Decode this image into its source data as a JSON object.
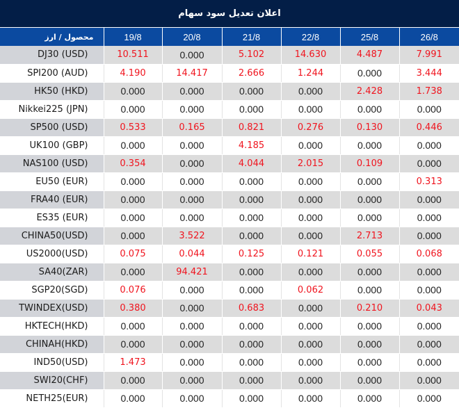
{
  "title": "اعلان تعديل سود سهام",
  "header": {
    "label_column": "محصول / ارز",
    "dates": [
      "19/8",
      "20/8",
      "21/8",
      "22/8",
      "25/8",
      "26/8"
    ]
  },
  "colors": {
    "title_bg": "#031e47",
    "header_bg": "#0b4aa0",
    "highlight_text": "#f0141e",
    "row_alt_bg": "#dcdcdc",
    "label_alt_bg": "#d2d4d9"
  },
  "rows": [
    {
      "product": "DJ30 (USD)",
      "values": [
        "10.511",
        "0.000",
        "5.102",
        "14.630",
        "4.487",
        "7.991"
      ]
    },
    {
      "product": "SPI200 (AUD)",
      "values": [
        "4.190",
        "14.417",
        "2.666",
        "1.244",
        "0.000",
        "3.444"
      ]
    },
    {
      "product": "HK50 (HKD)",
      "values": [
        "0.000",
        "0.000",
        "0.000",
        "0.000",
        "2.428",
        "1.738"
      ]
    },
    {
      "product": "Nikkei225 (JPN)",
      "values": [
        "0.000",
        "0.000",
        "0.000",
        "0.000",
        "0.000",
        "0.000"
      ]
    },
    {
      "product": "SP500 (USD)",
      "values": [
        "0.533",
        "0.165",
        "0.821",
        "0.276",
        "0.130",
        "0.446"
      ]
    },
    {
      "product": "UK100 (GBP)",
      "values": [
        "0.000",
        "0.000",
        "4.185",
        "0.000",
        "0.000",
        "0.000"
      ]
    },
    {
      "product": "NAS100 (USD)",
      "values": [
        "0.354",
        "0.000",
        "4.044",
        "2.015",
        "0.109",
        "0.000"
      ]
    },
    {
      "product": "EU50 (EUR)",
      "values": [
        "0.000",
        "0.000",
        "0.000",
        "0.000",
        "0.000",
        "0.313"
      ]
    },
    {
      "product": "FRA40 (EUR)",
      "values": [
        "0.000",
        "0.000",
        "0.000",
        "0.000",
        "0.000",
        "0.000"
      ]
    },
    {
      "product": "ES35 (EUR)",
      "values": [
        "0.000",
        "0.000",
        "0.000",
        "0.000",
        "0.000",
        "0.000"
      ]
    },
    {
      "product": "CHINA50(USD)",
      "values": [
        "0.000",
        "3.522",
        "0.000",
        "0.000",
        "2.713",
        "0.000"
      ]
    },
    {
      "product": "US2000(USD)",
      "values": [
        "0.075",
        "0.044",
        "0.125",
        "0.121",
        "0.055",
        "0.068"
      ]
    },
    {
      "product": "SA40(ZAR)",
      "values": [
        "0.000",
        "94.421",
        "0.000",
        "0.000",
        "0.000",
        "0.000"
      ]
    },
    {
      "product": "SGP20(SGD)",
      "values": [
        "0.076",
        "0.000",
        "0.000",
        "0.062",
        "0.000",
        "0.000"
      ]
    },
    {
      "product": "TWINDEX(USD)",
      "values": [
        "0.380",
        "0.000",
        "0.683",
        "0.000",
        "0.210",
        "0.043"
      ]
    },
    {
      "product": "HKTECH(HKD)",
      "values": [
        "0.000",
        "0.000",
        "0.000",
        "0.000",
        "0.000",
        "0.000"
      ]
    },
    {
      "product": "CHINAH(HKD)",
      "values": [
        "0.000",
        "0.000",
        "0.000",
        "0.000",
        "0.000",
        "0.000"
      ]
    },
    {
      "product": "IND50(USD)",
      "values": [
        "1.473",
        "0.000",
        "0.000",
        "0.000",
        "0.000",
        "0.000"
      ]
    },
    {
      "product": "SWI20(CHF)",
      "values": [
        "0.000",
        "0.000",
        "0.000",
        "0.000",
        "0.000",
        "0.000"
      ]
    },
    {
      "product": "NETH25(EUR)",
      "values": [
        "0.000",
        "0.000",
        "0.000",
        "0.000",
        "0.000",
        "0.000"
      ]
    }
  ]
}
